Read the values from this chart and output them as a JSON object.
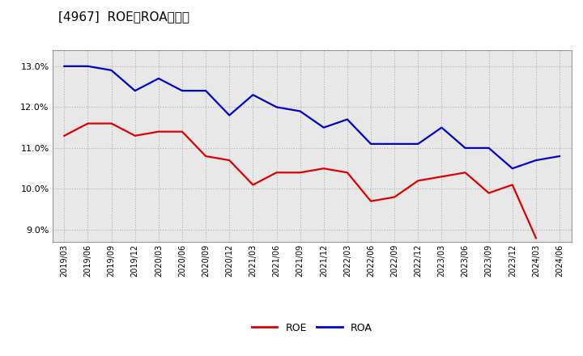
{
  "title": "[4967]  ROE、ROAの推移",
  "x_labels": [
    "2019/03",
    "2019/06",
    "2019/09",
    "2019/12",
    "2020/03",
    "2020/06",
    "2020/09",
    "2020/12",
    "2021/03",
    "2021/06",
    "2021/09",
    "2021/12",
    "2022/03",
    "2022/06",
    "2022/09",
    "2022/12",
    "2023/03",
    "2023/06",
    "2023/09",
    "2023/12",
    "2024/03",
    "2024/06"
  ],
  "ROE": [
    11.3,
    11.6,
    11.6,
    11.3,
    11.4,
    11.4,
    10.8,
    10.7,
    10.1,
    10.4,
    10.4,
    10.5,
    10.4,
    9.7,
    9.8,
    10.2,
    10.3,
    10.4,
    9.9,
    10.1,
    8.8,
    null
  ],
  "ROA": [
    13.0,
    13.0,
    12.9,
    12.4,
    12.7,
    12.4,
    12.4,
    11.8,
    12.3,
    12.0,
    11.9,
    11.5,
    11.7,
    11.1,
    11.1,
    11.1,
    11.5,
    11.0,
    11.0,
    10.5,
    10.7,
    10.8
  ],
  "ROE_color": "#dd0000",
  "ROA_color": "#0000cc",
  "ylim": [
    8.7,
    13.4
  ],
  "yticks": [
    9.0,
    10.0,
    11.0,
    12.0,
    13.0
  ],
  "bg_color": "#ffffff",
  "plot_bg_color": "#e8e8e8",
  "grid_color": "#b0b0b0",
  "title_fontsize": 11,
  "legend_fontsize": 9
}
